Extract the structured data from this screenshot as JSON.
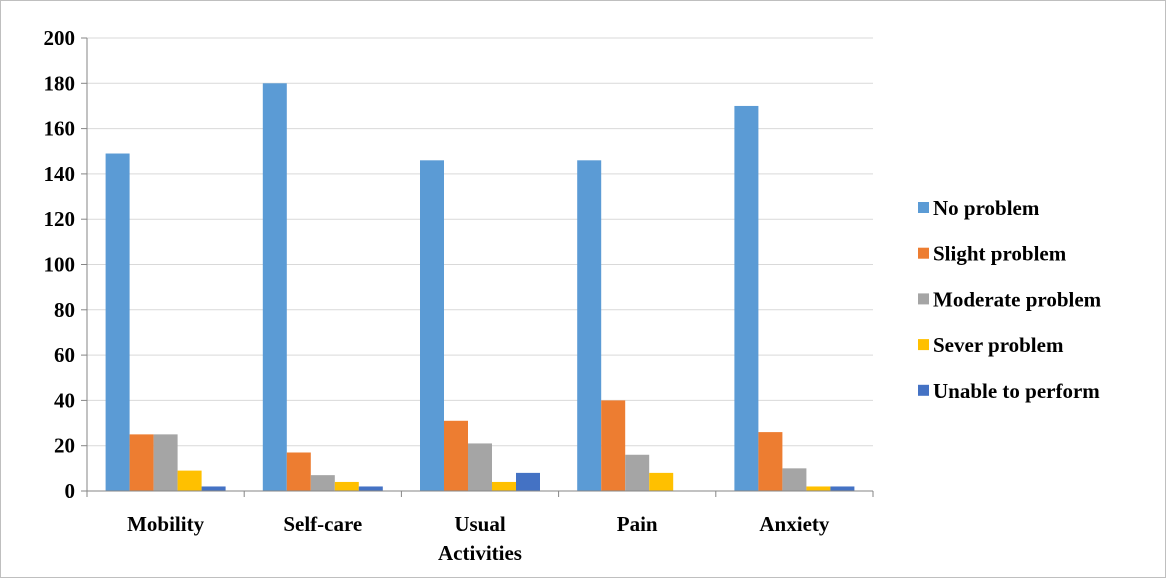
{
  "chart_data": {
    "type": "bar",
    "title": "",
    "xlabel": "",
    "ylabel": "",
    "categories": [
      [
        "Mobility"
      ],
      [
        "Self-care"
      ],
      [
        "Usual",
        "Activities"
      ],
      [
        "Pain"
      ],
      [
        "Anxiety"
      ]
    ],
    "ylim": [
      0,
      200
    ],
    "yticks": [
      0,
      20,
      40,
      60,
      80,
      100,
      120,
      140,
      160,
      180,
      200
    ],
    "grid": true,
    "legend_position": "right",
    "series": [
      {
        "name": "No problem",
        "color": "#5b9bd5",
        "values": [
          149,
          180,
          146,
          146,
          170
        ]
      },
      {
        "name": "Slight problem",
        "color": "#ed7d31",
        "values": [
          25,
          17,
          31,
          40,
          26
        ]
      },
      {
        "name": "Moderate problem",
        "color": "#a5a5a5",
        "values": [
          25,
          7,
          21,
          16,
          10
        ]
      },
      {
        "name": "Sever problem",
        "color": "#ffc000",
        "values": [
          9,
          4,
          4,
          8,
          2
        ]
      },
      {
        "name": "Unable to perform",
        "color": "#4472c4",
        "values": [
          2,
          2,
          8,
          0,
          2
        ]
      }
    ]
  }
}
